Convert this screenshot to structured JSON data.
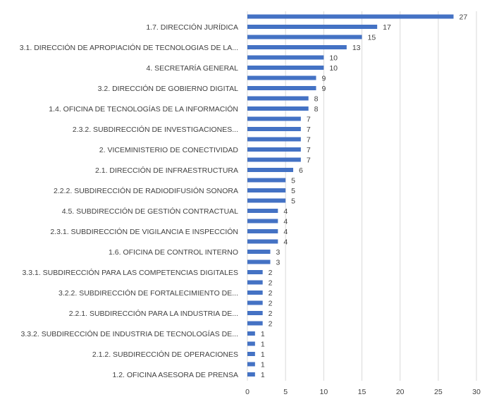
{
  "chart_data": {
    "type": "bar",
    "orientation": "horizontal",
    "title": "",
    "xlabel": "",
    "ylabel": "",
    "xlim": [
      0,
      30
    ],
    "x_ticks": [
      0,
      5,
      10,
      15,
      20,
      25,
      30
    ],
    "grid": "vertical",
    "legend": "none",
    "bar_color": "#4472c4",
    "categories": [
      "",
      "1.7. DIRECCIÓN JURÍDICA",
      "",
      "3.1. DIRECCIÓN DE APROPIACIÓN DE TECNOLOGIAS DE LA...",
      "",
      "4. SECRETARÍA GENERAL",
      "",
      "3.2. DIRECCIÓN DE GOBIERNO DIGITAL",
      "",
      "1.4. OFICINA DE TECNOLOGÍAS DE LA INFORMACIÓN",
      "",
      "2.3.2. SUBDIRECCIÓN DE INVESTIGACIONES...",
      "",
      "2. VICEMINISTERIO DE CONECTIVIDAD",
      "",
      "2.1. DIRECCIÓN DE INFRAESTRUCTURA",
      "",
      "2.2.2. SUBDIRECCIÓN DE RADIODIFUSIÓN SONORA",
      "",
      "4.5. SUBDIRECCIÓN DE GESTIÓN CONTRACTUAL",
      "",
      "2.3.1. SUBDIRECCIÓN DE VIGILANCIA E INSPECCIÓN",
      "",
      "1.6. OFICINA DE CONTROL INTERNO",
      "",
      "3.3.1. SUBDIRECCIÓN PARA LAS COMPETENCIAS DIGITALES",
      "",
      "3.2.2. SUBDIRECCIÓN DE FORTALECIMIENTO DE...",
      "",
      "2.2.1. SUBDIRECCIÓN PARA LA INDUSTRIA DE...",
      "",
      "3.3.2. SUBDIRECCIÓN DE INDUSTRIA DE TECNOLOGÍAS DE...",
      "",
      "2.1.2. SUBDIRECCIÓN DE OPERACIONES",
      "",
      "1.2. OFICINA ASESORA DE PRENSA"
    ],
    "values": [
      27,
      17,
      15,
      13,
      10,
      10,
      9,
      9,
      8,
      8,
      7,
      7,
      7,
      7,
      7,
      6,
      5,
      5,
      5,
      4,
      4,
      4,
      4,
      3,
      3,
      2,
      2,
      2,
      2,
      2,
      2,
      1,
      1,
      1,
      1,
      1
    ]
  }
}
